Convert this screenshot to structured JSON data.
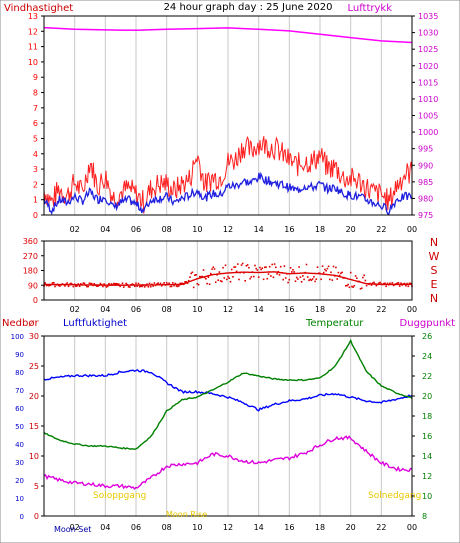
{
  "title": "24 hour graph day : 25 June 2020",
  "colors": {
    "title": "#e0c000",
    "wind": "#ff0000",
    "gust": "#ff2020",
    "avg_wind": "#2020e0",
    "pressure": "#ff00ff",
    "direction": "#dd0000",
    "rain": "#cc0000",
    "humidity": "#0000ff",
    "temperature": "#008000",
    "dewpoint": "#dd00dd",
    "axis": "#000000",
    "grid": "#c8c8c8",
    "sun": "#e8c800"
  },
  "chart_data": [
    {
      "type": "line",
      "name": "wind-pressure",
      "left_label": "Vindhastighet",
      "right_label": "Lufttrykk",
      "x_ticks": [
        "02",
        "04",
        "06",
        "08",
        "10",
        "12",
        "14",
        "16",
        "18",
        "20",
        "22",
        "00"
      ],
      "y_left": {
        "ticks": [
          "0",
          "1",
          "2",
          "3",
          "4",
          "5",
          "6",
          "7",
          "8",
          "9",
          "10",
          "11",
          "12",
          "13"
        ],
        "ylim": [
          0,
          13
        ]
      },
      "y_right": {
        "ticks": [
          "975",
          "980",
          "985",
          "990",
          "995",
          "1000",
          "1005",
          "1010",
          "1015",
          "1020",
          "1025",
          "1030",
          "1035"
        ],
        "ylim": [
          975,
          1035
        ]
      },
      "series": [
        {
          "key": "gust",
          "points": [
            [
              0,
              1.4
            ],
            [
              0.5,
              0.6
            ],
            [
              1,
              1.5
            ],
            [
              1.5,
              1.0
            ],
            [
              2,
              1.9
            ],
            [
              2.5,
              1.2
            ],
            [
              3,
              3.3
            ],
            [
              3.5,
              1.6
            ],
            [
              4,
              2.3
            ],
            [
              4.5,
              0.9
            ],
            [
              5,
              1.2
            ],
            [
              5.5,
              1.5
            ],
            [
              6,
              1.1
            ],
            [
              6.5,
              0.6
            ],
            [
              7,
              1.5
            ],
            [
              7.5,
              1.8
            ],
            [
              8,
              1.8
            ],
            [
              8.5,
              1.3
            ],
            [
              9,
              1.8
            ],
            [
              9.5,
              2.1
            ],
            [
              10,
              3.7
            ],
            [
              10.5,
              1.7
            ],
            [
              11,
              2.2
            ],
            [
              11.5,
              2.2
            ],
            [
              12,
              3.2
            ],
            [
              12.5,
              3.4
            ],
            [
              13,
              4.3
            ],
            [
              13.5,
              3.9
            ],
            [
              14,
              4.5
            ],
            [
              14.5,
              4.3
            ],
            [
              15,
              4.2
            ],
            [
              15.5,
              3.8
            ],
            [
              16,
              3.3
            ],
            [
              16.5,
              3.0
            ],
            [
              17,
              3.3
            ],
            [
              17.5,
              3.2
            ],
            [
              18,
              3.7
            ],
            [
              18.5,
              2.8
            ],
            [
              19,
              2.9
            ],
            [
              19.5,
              2.2
            ],
            [
              20,
              2.1
            ],
            [
              20.5,
              2.0
            ],
            [
              21,
              1.6
            ],
            [
              21.5,
              1.2
            ],
            [
              22,
              1.1
            ],
            [
              22.5,
              0.6
            ],
            [
              23,
              1.7
            ],
            [
              23.5,
              2.4
            ],
            [
              24,
              2.6
            ]
          ]
        },
        {
          "key": "avg_wind",
          "points": [
            [
              0,
              1.0
            ],
            [
              0.5,
              0.3
            ],
            [
              1,
              1.0
            ],
            [
              1.5,
              0.8
            ],
            [
              2,
              1.2
            ],
            [
              2.5,
              0.9
            ],
            [
              3,
              1.5
            ],
            [
              3.5,
              1.0
            ],
            [
              4,
              1.2
            ],
            [
              4.5,
              0.5
            ],
            [
              5,
              0.8
            ],
            [
              5.5,
              1.0
            ],
            [
              6,
              0.7
            ],
            [
              6.5,
              0.3
            ],
            [
              7,
              1.0
            ],
            [
              7.5,
              1.1
            ],
            [
              8,
              1.2
            ],
            [
              8.5,
              0.8
            ],
            [
              9,
              1.1
            ],
            [
              9.5,
              1.3
            ],
            [
              10,
              1.6
            ],
            [
              10.5,
              1.1
            ],
            [
              11,
              1.4
            ],
            [
              11.5,
              1.3
            ],
            [
              12,
              1.9
            ],
            [
              12.5,
              1.9
            ],
            [
              13,
              2.2
            ],
            [
              13.5,
              2.1
            ],
            [
              14,
              2.5
            ],
            [
              14.5,
              2.3
            ],
            [
              15,
              2.1
            ],
            [
              15.5,
              2.0
            ],
            [
              16,
              1.8
            ],
            [
              16.5,
              1.6
            ],
            [
              17,
              1.9
            ],
            [
              17.5,
              1.8
            ],
            [
              18,
              2.0
            ],
            [
              18.5,
              1.7
            ],
            [
              19,
              1.8
            ],
            [
              19.5,
              1.4
            ],
            [
              20,
              1.3
            ],
            [
              20.5,
              1.2
            ],
            [
              21,
              1.0
            ],
            [
              21.5,
              0.8
            ],
            [
              22,
              0.6
            ],
            [
              22.5,
              0.3
            ],
            [
              23,
              1.0
            ],
            [
              23.5,
              1.2
            ],
            [
              24,
              1.2
            ]
          ]
        },
        {
          "key": "pressure",
          "points": [
            [
              0,
              1031.5
            ],
            [
              2,
              1031.0
            ],
            [
              4,
              1030.8
            ],
            [
              6,
              1030.7
            ],
            [
              8,
              1031.0
            ],
            [
              10,
              1031.2
            ],
            [
              12,
              1031.4
            ],
            [
              14,
              1031.0
            ],
            [
              16,
              1030.5
            ],
            [
              18,
              1029.5
            ],
            [
              20,
              1028.5
            ],
            [
              22,
              1027.5
            ],
            [
              24,
              1027.0
            ]
          ]
        }
      ]
    },
    {
      "type": "scatter",
      "name": "wind-direction",
      "x_ticks": [
        "02",
        "04",
        "06",
        "08",
        "10",
        "12",
        "14",
        "16",
        "18",
        "20",
        "22",
        "00"
      ],
      "y_ticks": [
        "0",
        "90",
        "180",
        "270",
        "360"
      ],
      "ylim": [
        0,
        360
      ],
      "compass": [
        "N",
        "W",
        "S",
        "E",
        "N"
      ],
      "profile": [
        [
          0,
          95
        ],
        [
          3,
          92
        ],
        [
          5,
          90
        ],
        [
          7,
          92
        ],
        [
          9,
          95
        ],
        [
          10,
          130
        ],
        [
          11,
          155
        ],
        [
          12,
          165
        ],
        [
          13,
          170
        ],
        [
          14,
          168
        ],
        [
          15,
          172
        ],
        [
          16,
          160
        ],
        [
          17,
          165
        ],
        [
          18,
          160
        ],
        [
          19,
          150
        ],
        [
          20,
          125
        ],
        [
          21,
          100
        ],
        [
          22,
          95
        ],
        [
          24,
          95
        ]
      ]
    },
    {
      "type": "line",
      "name": "rain-humidity-temp-dew",
      "labels": {
        "rain": "Nedbør",
        "humidity": "Luftfuktighet",
        "temperature": "Temperatur",
        "dewpoint": "Duggpunkt"
      },
      "x_ticks": [
        "02",
        "04",
        "06",
        "08",
        "10",
        "12",
        "14",
        "16",
        "18",
        "20",
        "22",
        "00"
      ],
      "y_humidity": {
        "ticks": [
          "0",
          "10",
          "20",
          "30",
          "40",
          "50",
          "60",
          "70",
          "80",
          "90",
          "100"
        ],
        "ylim": [
          0,
          100
        ]
      },
      "y_rain": {
        "ticks": [
          "0",
          "5",
          "10",
          "15",
          "20",
          "25",
          "30"
        ],
        "ylim": [
          0,
          30
        ]
      },
      "y_temp": {
        "ticks": [
          "8",
          "10",
          "12",
          "14",
          "16",
          "18",
          "20",
          "22",
          "24",
          "26"
        ],
        "ylim": [
          8,
          26
        ]
      },
      "annotations": [
        "Soloppgang",
        "Solnedgang",
        "Moon Set",
        "Moon Rise"
      ],
      "series": [
        {
          "key": "humidity",
          "axis": "humidity",
          "points": [
            [
              0,
              76
            ],
            [
              1,
              77
            ],
            [
              2,
              78
            ],
            [
              3,
              78
            ],
            [
              4,
              78
            ],
            [
              5,
              80
            ],
            [
              6,
              81
            ],
            [
              7,
              80
            ],
            [
              8,
              74
            ],
            [
              9,
              69
            ],
            [
              10,
              69
            ],
            [
              11,
              68
            ],
            [
              12,
              66
            ],
            [
              13,
              63
            ],
            [
              14,
              59
            ],
            [
              15,
              62
            ],
            [
              16,
              64
            ],
            [
              17,
              65
            ],
            [
              18,
              67
            ],
            [
              19,
              68
            ],
            [
              20,
              66
            ],
            [
              21,
              64
            ],
            [
              22,
              63
            ],
            [
              23,
              65
            ],
            [
              24,
              67
            ]
          ]
        },
        {
          "key": "temperature",
          "axis": "temp",
          "points": [
            [
              0,
              16.3
            ],
            [
              1,
              15.6
            ],
            [
              2,
              15.2
            ],
            [
              3,
              15.0
            ],
            [
              4,
              15.0
            ],
            [
              5,
              14.8
            ],
            [
              6,
              14.7
            ],
            [
              7,
              16.0
            ],
            [
              8,
              18.5
            ],
            [
              9,
              19.6
            ],
            [
              10,
              19.9
            ],
            [
              11,
              20.6
            ],
            [
              12,
              21.4
            ],
            [
              13,
              22.3
            ],
            [
              14,
              22.0
            ],
            [
              15,
              21.7
            ],
            [
              16,
              21.6
            ],
            [
              17,
              21.6
            ],
            [
              18,
              21.8
            ],
            [
              19,
              23.0
            ],
            [
              20,
              25.5
            ],
            [
              21,
              22.5
            ],
            [
              22,
              21.0
            ],
            [
              23,
              20.3
            ],
            [
              24,
              19.8
            ]
          ]
        },
        {
          "key": "dewpoint",
          "axis": "temp",
          "points": [
            [
              0,
              12.0
            ],
            [
              1,
              11.6
            ],
            [
              2,
              11.3
            ],
            [
              3,
              11.2
            ],
            [
              4,
              11.0
            ],
            [
              5,
              11.0
            ],
            [
              6,
              10.8
            ],
            [
              7,
              11.8
            ],
            [
              8,
              13.0
            ],
            [
              9,
              13.2
            ],
            [
              10,
              13.3
            ],
            [
              11,
              14.2
            ],
            [
              12,
              14.0
            ],
            [
              13,
              13.5
            ],
            [
              14,
              13.3
            ],
            [
              15,
              13.6
            ],
            [
              16,
              13.8
            ],
            [
              17,
              14.3
            ],
            [
              18,
              15.1
            ],
            [
              19,
              15.8
            ],
            [
              20,
              15.8
            ],
            [
              21,
              14.5
            ],
            [
              22,
              13.3
            ],
            [
              23,
              12.7
            ],
            [
              24,
              12.6
            ]
          ]
        }
      ]
    }
  ]
}
